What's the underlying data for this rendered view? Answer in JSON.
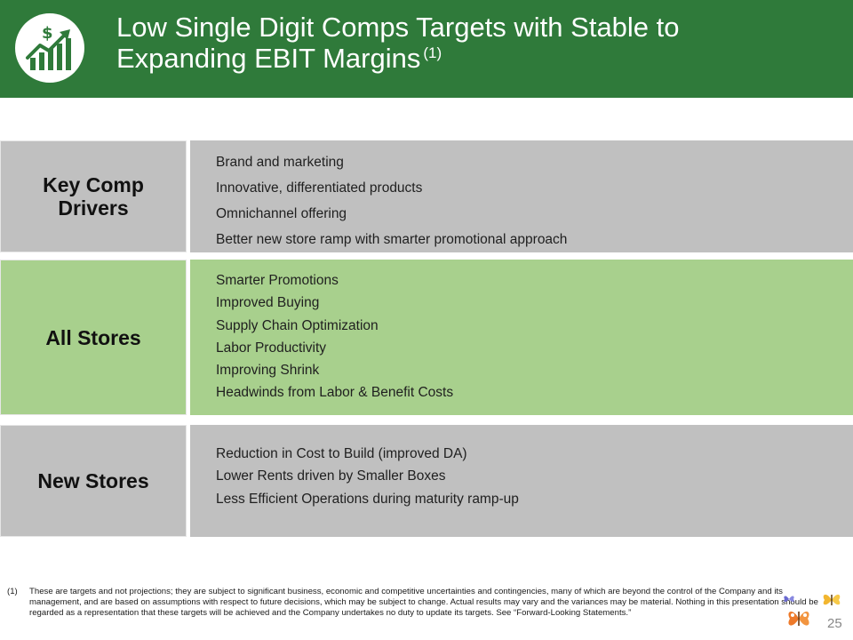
{
  "header": {
    "title_line1": "Low Single Digit Comps Targets with Stable to",
    "title_line2": "Expanding EBIT Margins",
    "title_footnote_ref": "(1)",
    "logo_icon": "growth-chart-dollar-icon",
    "colors": {
      "header_bg": "#2f7a3a",
      "logo_green": "#2f7a3a"
    }
  },
  "rows": [
    {
      "label_line1": "Key Comp",
      "label_line2": "Drivers",
      "color": "#c0c0c0",
      "items": [
        "Brand and marketing",
        "Innovative, differentiated products",
        "Omnichannel offering",
        "Better new store ramp with smarter promotional approach"
      ]
    },
    {
      "label_line1": "All Stores",
      "color": "#a8d08d",
      "items": [
        "Smarter Promotions",
        "Improved Buying",
        "Supply Chain Optimization",
        "Labor Productivity",
        "Improving Shrink",
        "Headwinds from Labor & Benefit Costs"
      ]
    },
    {
      "label_line1": "New Stores",
      "color": "#c0c0c0",
      "items": [
        "Reduction in Cost to Build (improved DA)",
        "Lower Rents driven by Smaller Boxes",
        "Less Efficient Operations during maturity ramp-up"
      ]
    }
  ],
  "footnote": {
    "marker": "(1)",
    "text": "These are targets and not projections; they are subject to significant business, economic and competitive uncertainties and contingencies, many of which are beyond the control of the Company and its management, and are based on assumptions with respect to future decisions, which may be subject to change. Actual results may vary and the variances may be material. Nothing in this presentation should be regarded as a representation that these targets will be achieved and the Company undertakes no duty to update its targets. See “Forward-Looking Statements.”"
  },
  "page_number": "25",
  "decorations": [
    "butterfly-icon",
    "butterfly-icon",
    "butterfly-icon"
  ]
}
